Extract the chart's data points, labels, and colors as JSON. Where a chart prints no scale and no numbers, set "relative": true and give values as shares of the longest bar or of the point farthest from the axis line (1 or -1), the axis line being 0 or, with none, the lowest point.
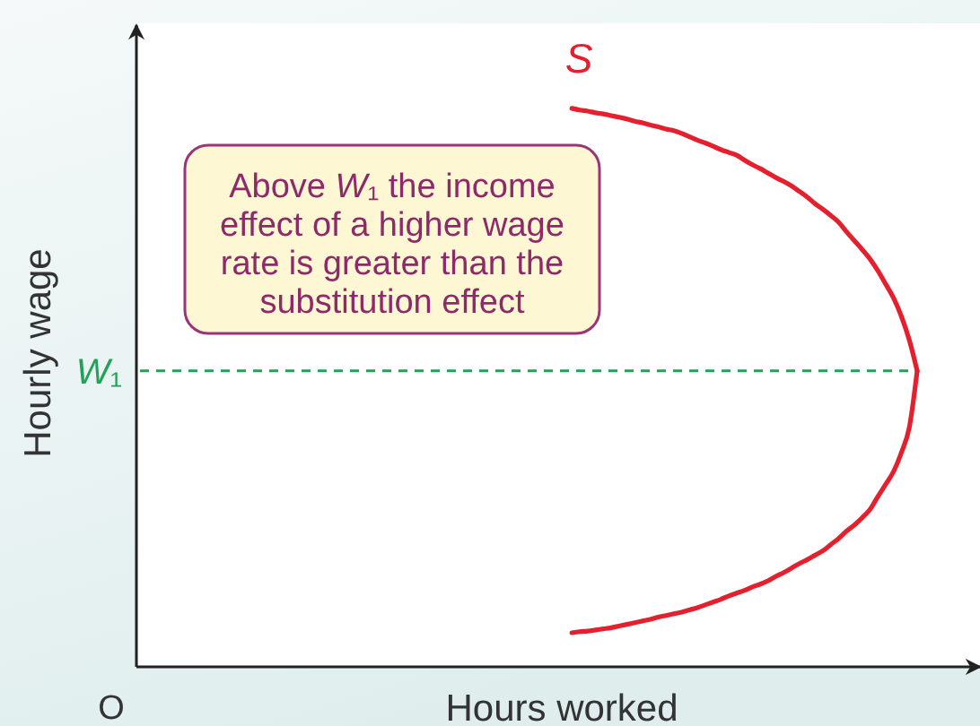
{
  "chart_data": {
    "type": "line",
    "relative": true,
    "xlabel": "Hours worked",
    "categories": [
      null,
      null,
      null,
      null,
      null,
      null,
      null,
      null,
      null,
      null,
      null,
      null,
      null,
      null,
      null,
      null,
      null,
      null,
      null,
      null,
      null,
      null,
      null,
      null,
      null,
      null,
      null,
      null,
      null,
      null,
      null,
      null,
      null,
      null,
      null,
      null,
      null,
      null,
      null,
      null,
      null,
      null,
      null,
      null,
      null
    ],
    "series": [
      {
        "name": "S",
        "color": "#e5202e",
        "values": [
          1.0,
          0.997,
          0.995,
          0.992,
          0.99,
          0.987,
          0.984,
          0.981,
          0.977,
          0.974,
          0.97,
          0.967,
          0.963,
          0.96,
          0.955,
          0.949,
          0.943,
          0.938,
          0.932,
          0.926,
          0.921,
          0.916,
          0.907,
          0.899,
          0.892,
          0.884,
          0.876,
          0.869,
          0.861,
          0.851,
          0.841,
          0.829,
          0.819,
          0.808,
          0.796,
          0.779,
          0.763,
          0.747,
          0.73,
          0.709,
          0.685,
          0.66,
          0.627,
          0.585,
          0.53
        ]
      },
      {
        "color": "#e5202e",
        "values": [
          0.061,
          0.063,
          0.064,
          0.066,
          0.068,
          0.07,
          0.073,
          0.076,
          0.079,
          0.082,
          0.085,
          0.089,
          0.092,
          0.095,
          0.098,
          0.102,
          0.106,
          0.111,
          0.116,
          0.121,
          0.127,
          0.132,
          0.137,
          0.143,
          0.148,
          0.154,
          0.162,
          0.169,
          0.177,
          0.185,
          0.192,
          0.2,
          0.208,
          0.219,
          0.23,
          0.243,
          0.254,
          0.267,
          0.282,
          0.305,
          0.327,
          0.35,
          0.384,
          0.429,
          0.53
        ]
      }
    ],
    "ref_lines": [
      {
        "axis": "y",
        "value": 0.53,
        "label": "W₁",
        "color": "#23a15a",
        "line_style": "dashed"
      }
    ],
    "annotations": [
      "Above W₁ the income effect of a higher wage rate is greater than the substitution effect",
      "O",
      "Hourly wage"
    ]
  }
}
